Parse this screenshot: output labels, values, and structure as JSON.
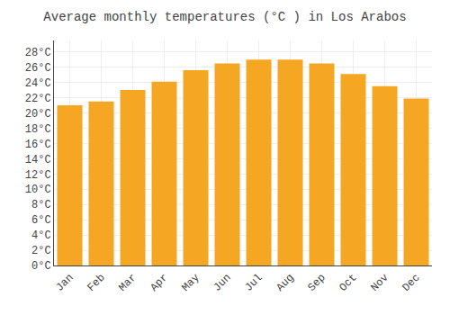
{
  "chart_data": {
    "type": "bar",
    "title": "Average monthly temperatures (°C ) in Los Arabos",
    "categories": [
      "Jan",
      "Feb",
      "Mar",
      "Apr",
      "May",
      "Jun",
      "Jul",
      "Aug",
      "Sep",
      "Oct",
      "Nov",
      "Dec"
    ],
    "values": [
      21.0,
      21.5,
      23.0,
      24.1,
      25.6,
      26.5,
      27.0,
      27.0,
      26.5,
      25.1,
      23.5,
      21.9
    ],
    "color": "#F5A623",
    "ylim": [
      0,
      29.5
    ],
    "yticks": [
      {
        "value": 0,
        "label": "0°C"
      },
      {
        "value": 2,
        "label": "2°C"
      },
      {
        "value": 4,
        "label": "4°C"
      },
      {
        "value": 6,
        "label": "6°C"
      },
      {
        "value": 8,
        "label": "8°C"
      },
      {
        "value": 10,
        "label": "10°C"
      },
      {
        "value": 12,
        "label": "12°C"
      },
      {
        "value": 14,
        "label": "14°C"
      },
      {
        "value": 16,
        "label": "16°C"
      },
      {
        "value": 18,
        "label": "18°C"
      },
      {
        "value": 20,
        "label": "20°C"
      },
      {
        "value": 22,
        "label": "22°C"
      },
      {
        "value": 24,
        "label": "24°C"
      },
      {
        "value": 26,
        "label": "26°C"
      },
      {
        "value": 28,
        "label": "28°C"
      }
    ],
    "grid": true
  }
}
